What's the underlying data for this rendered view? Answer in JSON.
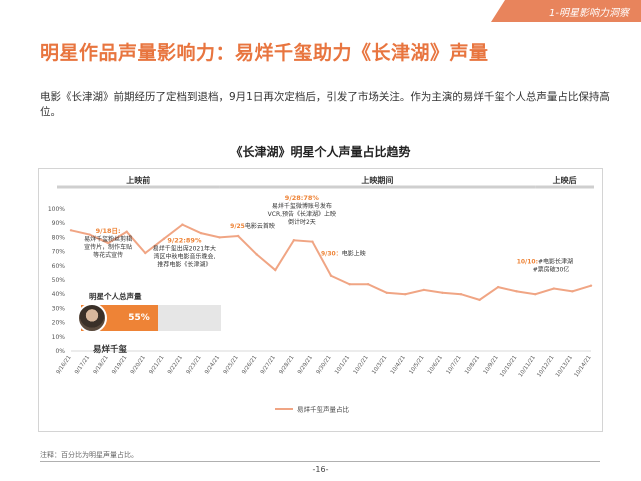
{
  "section_tag": "1-明星影响力洞察",
  "page_title": "明星作品声量影响力：易烊千玺助力《长津湖》声量",
  "intro": "电影《长津湖》前期经历了定档到退档，9月1日再次定档后，引发了市场关注。作为主演的易烊千玺个人总声量占比保持高位。",
  "footnote": "注释：百分比为明星声量占比。",
  "page_number": "-16-",
  "colors": {
    "accent": "#e8753f",
    "line": "#f0a584",
    "label": "#ee8336",
    "phase_bar": "#cfcfcf"
  },
  "card": {
    "label": "明星个人总声量",
    "value_text": "55%",
    "value": 0.55,
    "name": "易烊千玺",
    "avatar_icon": "person-photo-icon"
  },
  "chart_data": {
    "type": "line",
    "title": "《长津湖》明星个人声量占比趋势",
    "x": [
      "9/16/21",
      "9/17/21",
      "9/18/21",
      "9/19/21",
      "9/20/21",
      "9/21/21",
      "9/22/21",
      "9/23/21",
      "9/24/21",
      "9/25/21",
      "9/26/21",
      "9/27/21",
      "9/28/21",
      "9/29/21",
      "9/30/21",
      "10/1/21",
      "10/2/21",
      "10/3/21",
      "10/4/21",
      "10/5/21",
      "10/6/21",
      "10/7/21",
      "10/8/21",
      "10/9/21",
      "10/10/21",
      "10/11/21",
      "10/12/21",
      "10/13/21",
      "10/14/21"
    ],
    "series": [
      {
        "name": "易烊千玺声量占比",
        "values": [
          85,
          82,
          76,
          84,
          69,
          79,
          89,
          83,
          80,
          81,
          68,
          57,
          78,
          77,
          53,
          47,
          47,
          41,
          40,
          43,
          41,
          40,
          36,
          45,
          42,
          40,
          44,
          42,
          46
        ]
      }
    ],
    "yticks": [
      "0%",
      "10%",
      "20%",
      "30%",
      "40%",
      "50%",
      "60%",
      "70%",
      "80%",
      "90%",
      "100%"
    ],
    "ylim": [
      0,
      100
    ],
    "phases": [
      {
        "label": "上映前",
        "from": 0,
        "to": 8
      },
      {
        "label": "上映期间",
        "from": 8,
        "to": 25
      },
      {
        "label": "上映后",
        "from": 25,
        "to": 28
      }
    ],
    "annotations": [
      {
        "x_index": 2,
        "y": 76,
        "date": "9/18日:",
        "lines": [
          "易烊千玺粉丝剪辑",
          "宣传片，制作车贴",
          "等花式宣传"
        ]
      },
      {
        "x_index": 6,
        "y": 89,
        "date": "9/22:89%",
        "lines": [
          "易烊千玺出席2021年大",
          "湾区中秋电影音乐晚会,",
          "推荐电影《长津湖》"
        ]
      },
      {
        "x_index": 9,
        "y": 81,
        "date": "9/25",
        "lines": [
          "电影云首映"
        ]
      },
      {
        "x_index": 12,
        "y": 78,
        "date": "9/28:78%",
        "lines": [
          "易烊千玺微博账号发布",
          "VCR,预告《长津湖》上映",
          "倒计时2天"
        ]
      },
      {
        "x_index": 14,
        "y": 53,
        "date": "9/30：",
        "lines": [
          "电影上映"
        ]
      },
      {
        "x_index": 24,
        "y": 42,
        "date": "10/10:",
        "lines": [
          "#电影长津湖",
          "#票房破30亿"
        ]
      }
    ],
    "legend_position": "bottom",
    "grid": false
  }
}
